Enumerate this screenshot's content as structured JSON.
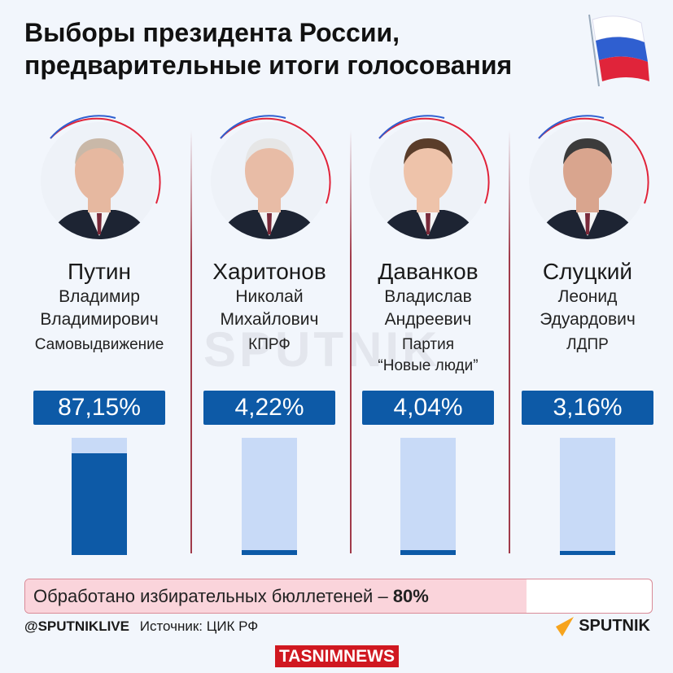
{
  "title_line1": "Выборы президента России,",
  "title_line2": "предварительные итоги голосования",
  "colors": {
    "accent": "#0d5aa7",
    "bar_bg": "#c8daf7",
    "progress_fill": "#fad4db",
    "progress_border": "#d98a97"
  },
  "candidates": [
    {
      "surname": "Путин",
      "first": "Владимир",
      "patronymic": "Владимирович",
      "party1": "Самовыдвижение",
      "party2": "",
      "percent_label": "87,15%"
    },
    {
      "surname": "Харитонов",
      "first": "Николай",
      "patronymic": "Михайлович",
      "party1": "КПРФ",
      "party2": "",
      "percent_label": "4,22%"
    },
    {
      "surname": "Даванков",
      "first": "Владислав",
      "patronymic": "Андреевич",
      "party1": "Партия",
      "party2": "“Новые люди”",
      "percent_label": "4,04%"
    },
    {
      "surname": "Слуцкий",
      "first": "Леонид",
      "patronymic": "Эдуардович",
      "party1": "ЛДПР",
      "party2": "",
      "percent_label": "3,16%"
    }
  ],
  "chart_data": {
    "type": "bar",
    "categories": [
      "Путин",
      "Харитонов",
      "Даванков",
      "Слуцкий"
    ],
    "values": [
      87.15,
      4.22,
      4.04,
      3.16
    ],
    "ylim": [
      0,
      100
    ],
    "title": "Выборы президента России, предварительные итоги голосования"
  },
  "progress": {
    "label": "Обработано избирательных бюллетеней – ",
    "value_label": "80%",
    "value": 80
  },
  "footer": {
    "handle": "@SPUTNIKLIVE",
    "source": "Источник: ЦИК РФ",
    "tasnim": "TASNIMNEWS",
    "logo": "SPUTNIK"
  },
  "watermark": "SPUTNIK"
}
